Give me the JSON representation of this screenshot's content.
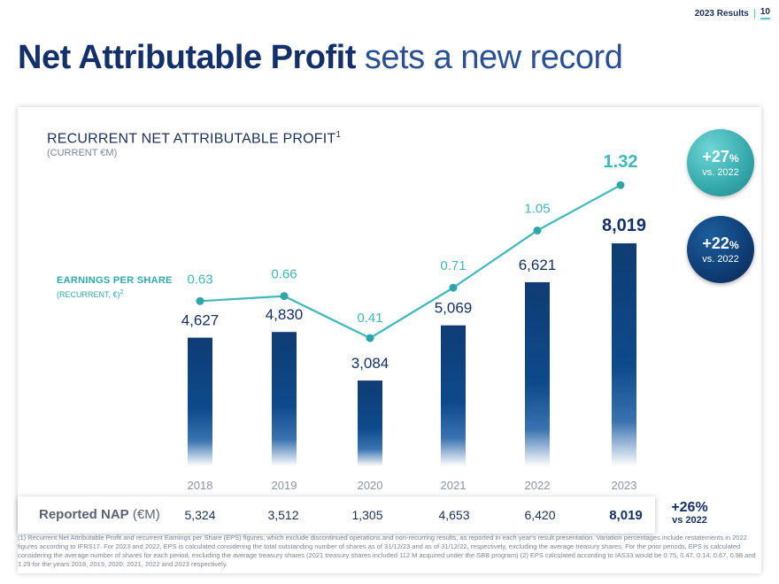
{
  "header": {
    "section": "2023 Results",
    "page_number": "10"
  },
  "title": {
    "bold": "Net Attributable Profit",
    "light": "sets a new record"
  },
  "chart_data": {
    "type": "bar",
    "title": "RECURRENT NET ATTRIBUTABLE PROFIT",
    "title_sup": "1",
    "subtitle": "(CURRENT €M)",
    "categories": [
      "2018",
      "2019",
      "2020",
      "2021",
      "2022",
      "2023"
    ],
    "series": [
      {
        "name": "Recurrent Net Attributable Profit (€M)",
        "type": "bar",
        "values": [
          4627,
          4830,
          3084,
          5069,
          6621,
          8019
        ],
        "labels": [
          "4,627",
          "4,830",
          "3,084",
          "5,069",
          "6,621",
          "8,019"
        ]
      },
      {
        "name": "Earnings per share (recurrent, €)",
        "type": "line",
        "values": [
          0.63,
          0.66,
          0.41,
          0.71,
          1.05,
          1.32
        ],
        "labels": [
          "0.63",
          "0.66",
          "0.41",
          "0.71",
          "1.05",
          "1.32"
        ]
      }
    ],
    "bar_ylim": [
      0,
      9000
    ],
    "eps_ylim": [
      0,
      1.5
    ],
    "legend": "none",
    "grid": false
  },
  "eps_legend": {
    "label": "EARNINGS PER SHARE",
    "sublabel": "(RECURRENT, €)",
    "sublabel_sup": "2"
  },
  "badges": {
    "eps": {
      "value": "+27",
      "unit": "%",
      "caption": "vs. 2022"
    },
    "nap": {
      "value": "+22",
      "unit": "%",
      "caption": "vs. 2022"
    }
  },
  "reported_nap": {
    "label_bold": "Reported NAP",
    "label_unit": " (€M)",
    "values": [
      "5,324",
      "3,512",
      "1,305",
      "4,653",
      "6,420",
      "8,019"
    ],
    "growth": "+26%",
    "growth_caption": "vs 2022"
  },
  "footnote": "(1) Recurrent Net Attributable Profit and recurrent Earnings per Share (EPS) figures, which exclude discontinued operations and non-recurring results, as reported in each year's result presentation. Variation percentages include restatements in 2022 figures according to IFRS17. For 2023 and 2022, EPS is calculated considering the total outstanding number of shares as of 31/12/23 and as of 31/12/22, respectively, excluding the average treasury shares. For the prior periods, EPS is calculated considering the average number of shares for each period, excluding the average treasury shares (2021 treasury shares included 112 M acquired under the SBB program) (2) EPS calculated according to IAS33 would be 0.75, 0.47, 0.14, 0.67, 0.98 and 1.29 for the years 2018, 2019, 2020, 2021, 2022 and 2023 respectively.",
  "colors": {
    "navy": "#13306b",
    "bar_top": "#0f3c73",
    "bar_mid": "#0d4a8c",
    "eps_line": "#3fb8bb",
    "eps_dot": "#2fa5a8"
  }
}
